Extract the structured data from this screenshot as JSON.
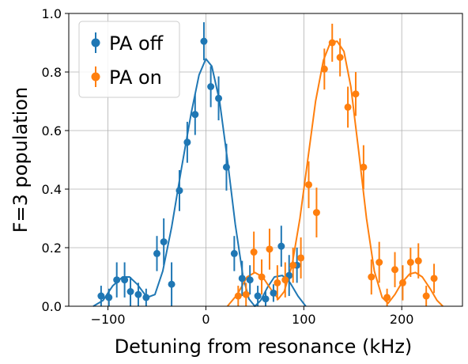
{
  "chart_data": {
    "type": "scatter",
    "title": "",
    "xlabel": "Detuning from resonance (kHz)",
    "ylabel": "F=3 population",
    "xlim": [
      -140,
      262
    ],
    "ylim": [
      0,
      1.0
    ],
    "xticks": [
      -100,
      0,
      100,
      200
    ],
    "yticks": [
      0.0,
      0.2,
      0.4,
      0.6,
      0.8,
      1.0
    ],
    "xtick_labels": [
      "−100",
      "0",
      "100",
      "200"
    ],
    "ytick_labels": [
      "0.0",
      "0.2",
      "0.4",
      "0.6",
      "0.8",
      "1.0"
    ],
    "grid": true,
    "legend_position": "top-left",
    "series": [
      {
        "name": "PA off",
        "color": "#1f77b4",
        "points": [
          {
            "x": -107,
            "y": 0.035,
            "err": 0.035
          },
          {
            "x": -99,
            "y": 0.03,
            "err": 0.03
          },
          {
            "x": -91,
            "y": 0.09,
            "err": 0.06
          },
          {
            "x": -83,
            "y": 0.09,
            "err": 0.06
          },
          {
            "x": -77,
            "y": 0.05,
            "err": 0.05
          },
          {
            "x": -69,
            "y": 0.04,
            "err": 0.04
          },
          {
            "x": -61,
            "y": 0.03,
            "err": 0.03
          },
          {
            "x": -50,
            "y": 0.18,
            "err": 0.06
          },
          {
            "x": -43,
            "y": 0.22,
            "err": 0.08
          },
          {
            "x": -35,
            "y": 0.075,
            "err": 0.075
          },
          {
            "x": -27,
            "y": 0.395,
            "err": 0.07
          },
          {
            "x": -19,
            "y": 0.56,
            "err": 0.07
          },
          {
            "x": -11,
            "y": 0.655,
            "err": 0.07
          },
          {
            "x": -2,
            "y": 0.905,
            "err": 0.065
          },
          {
            "x": 5,
            "y": 0.75,
            "err": 0.07
          },
          {
            "x": 13,
            "y": 0.71,
            "err": 0.075
          },
          {
            "x": 21,
            "y": 0.475,
            "err": 0.08
          },
          {
            "x": 29,
            "y": 0.18,
            "err": 0.06
          },
          {
            "x": 37,
            "y": 0.095,
            "err": 0.06
          },
          {
            "x": 45,
            "y": 0.09,
            "err": 0.05
          },
          {
            "x": 53,
            "y": 0.035,
            "err": 0.035
          },
          {
            "x": 61,
            "y": 0.025,
            "err": 0.025
          },
          {
            "x": 69,
            "y": 0.045,
            "err": 0.03
          },
          {
            "x": 77,
            "y": 0.205,
            "err": 0.07
          },
          {
            "x": 85,
            "y": 0.105,
            "err": 0.07
          },
          {
            "x": 93,
            "y": 0.14,
            "err": 0.06
          }
        ],
        "fit_curve": [
          [
            -115,
            0.0
          ],
          [
            -105,
            0.02
          ],
          [
            -95,
            0.07
          ],
          [
            -85,
            0.1
          ],
          [
            -78,
            0.1
          ],
          [
            -70,
            0.075
          ],
          [
            -60,
            0.03
          ],
          [
            -52,
            0.04
          ],
          [
            -44,
            0.12
          ],
          [
            -35,
            0.27
          ],
          [
            -25,
            0.47
          ],
          [
            -15,
            0.66
          ],
          [
            -7,
            0.79
          ],
          [
            0,
            0.845
          ],
          [
            6,
            0.82
          ],
          [
            14,
            0.7
          ],
          [
            22,
            0.5
          ],
          [
            30,
            0.28
          ],
          [
            38,
            0.1
          ],
          [
            44,
            0.025
          ],
          [
            50,
            0.0
          ],
          [
            56,
            0.02
          ],
          [
            63,
            0.065
          ],
          [
            70,
            0.1
          ],
          [
            78,
            0.105
          ],
          [
            86,
            0.08
          ],
          [
            94,
            0.035
          ],
          [
            102,
            0.0
          ]
        ]
      },
      {
        "name": "PA on",
        "color": "#ff7f0e",
        "points": [
          {
            "x": 33,
            "y": 0.035,
            "err": 0.035
          },
          {
            "x": 41,
            "y": 0.04,
            "err": 0.04
          },
          {
            "x": 49,
            "y": 0.185,
            "err": 0.07
          },
          {
            "x": 57,
            "y": 0.1,
            "err": 0.06
          },
          {
            "x": 65,
            "y": 0.195,
            "err": 0.07
          },
          {
            "x": 73,
            "y": 0.08,
            "err": 0.06
          },
          {
            "x": 81,
            "y": 0.09,
            "err": 0.06
          },
          {
            "x": 89,
            "y": 0.14,
            "err": 0.06
          },
          {
            "x": 97,
            "y": 0.165,
            "err": 0.07
          },
          {
            "x": 105,
            "y": 0.415,
            "err": 0.08
          },
          {
            "x": 113,
            "y": 0.32,
            "err": 0.085
          },
          {
            "x": 121,
            "y": 0.81,
            "err": 0.07
          },
          {
            "x": 129,
            "y": 0.9,
            "err": 0.065
          },
          {
            "x": 137,
            "y": 0.85,
            "err": 0.065
          },
          {
            "x": 145,
            "y": 0.68,
            "err": 0.07
          },
          {
            "x": 153,
            "y": 0.725,
            "err": 0.075
          },
          {
            "x": 161,
            "y": 0.475,
            "err": 0.075
          },
          {
            "x": 169,
            "y": 0.1,
            "err": 0.06
          },
          {
            "x": 177,
            "y": 0.15,
            "err": 0.07
          },
          {
            "x": 185,
            "y": 0.03,
            "err": 0.03
          },
          {
            "x": 193,
            "y": 0.125,
            "err": 0.06
          },
          {
            "x": 201,
            "y": 0.08,
            "err": 0.06
          },
          {
            "x": 209,
            "y": 0.15,
            "err": 0.05
          },
          {
            "x": 217,
            "y": 0.155,
            "err": 0.06
          },
          {
            "x": 225,
            "y": 0.035,
            "err": 0.035
          },
          {
            "x": 233,
            "y": 0.095,
            "err": 0.05
          }
        ],
        "fit_curve": [
          [
            22,
            0.0
          ],
          [
            32,
            0.04
          ],
          [
            42,
            0.1
          ],
          [
            50,
            0.115
          ],
          [
            58,
            0.1
          ],
          [
            66,
            0.06
          ],
          [
            74,
            0.025
          ],
          [
            80,
            0.05
          ],
          [
            88,
            0.14
          ],
          [
            96,
            0.3
          ],
          [
            104,
            0.5
          ],
          [
            112,
            0.7
          ],
          [
            120,
            0.84
          ],
          [
            127,
            0.9
          ],
          [
            134,
            0.905
          ],
          [
            141,
            0.87
          ],
          [
            148,
            0.75
          ],
          [
            156,
            0.53
          ],
          [
            164,
            0.3
          ],
          [
            172,
            0.12
          ],
          [
            180,
            0.03
          ],
          [
            186,
            0.01
          ],
          [
            193,
            0.04
          ],
          [
            200,
            0.08
          ],
          [
            208,
            0.11
          ],
          [
            214,
            0.115
          ],
          [
            221,
            0.1
          ],
          [
            229,
            0.06
          ],
          [
            236,
            0.02
          ],
          [
            242,
            0.0
          ]
        ]
      }
    ]
  }
}
